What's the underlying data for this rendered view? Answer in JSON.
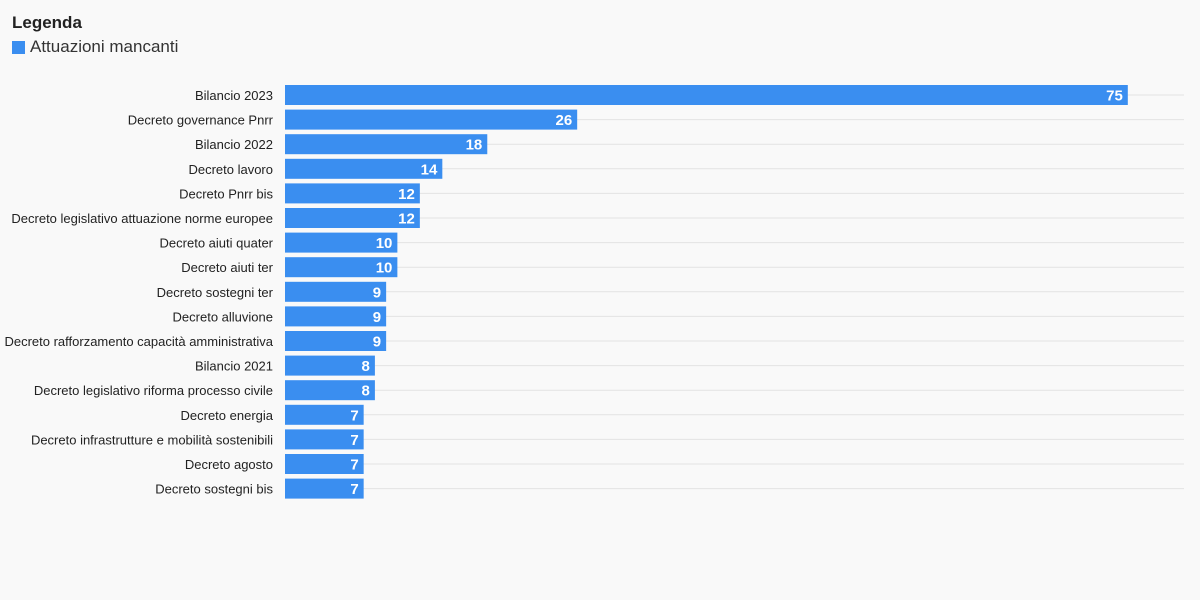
{
  "legend": {
    "title": "Legenda",
    "items": [
      {
        "label": "Attuazioni mancanti",
        "color": "#3a8ef0"
      }
    ]
  },
  "chart_data": {
    "type": "bar",
    "orientation": "horizontal",
    "title": "",
    "xlabel": "",
    "ylabel": "",
    "xlim": [
      0,
      80
    ],
    "grid": true,
    "legend_position": "top-left",
    "categories": [
      "Bilancio 2023",
      "Decreto governance Pnrr",
      "Bilancio 2022",
      "Decreto lavoro",
      "Decreto Pnrr bis",
      "Decreto legislativo attuazione norme europee",
      "Decreto aiuti quater",
      "Decreto aiuti ter",
      "Decreto sostegni ter",
      "Decreto alluvione",
      "Decreto rafforzamento capacità amministrativa",
      "Bilancio 2021",
      "Decreto legislativo riforma processo civile",
      "Decreto energia",
      "Decreto infrastrutture e mobilità sostenibili",
      "Decreto agosto",
      "Decreto sostegni bis"
    ],
    "series": [
      {
        "name": "Attuazioni mancanti",
        "color": "#3a8ef0",
        "values": [
          75,
          26,
          18,
          14,
          12,
          12,
          10,
          10,
          9,
          9,
          9,
          8,
          8,
          7,
          7,
          7,
          7
        ]
      }
    ]
  }
}
